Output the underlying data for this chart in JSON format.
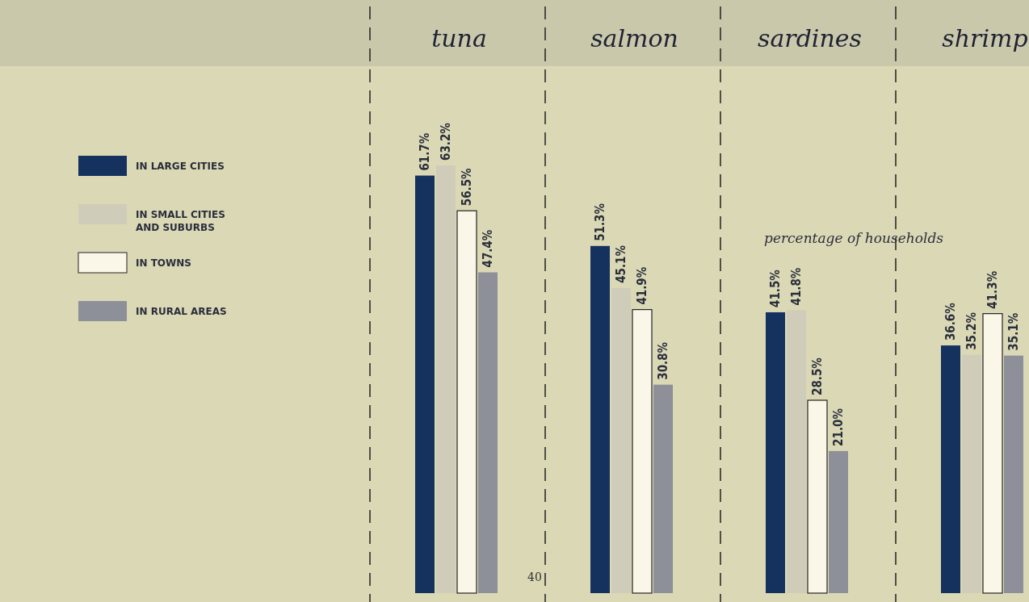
{
  "chart_data": {
    "type": "bar",
    "categories": [
      "tuna",
      "salmon",
      "sardines",
      "shrimp"
    ],
    "ylabel": "percentage of households",
    "legend": "left",
    "annotations": [
      "40"
    ],
    "series": [
      {
        "name": "IN LARGE CITIES",
        "color": "#15325f",
        "values": [
          61.7,
          51.3,
          41.5,
          36.6
        ],
        "value_labels": [
          "61.7%",
          "51.3%",
          "41.5%",
          "36.6%"
        ]
      },
      {
        "name": "IN SMALL CITIES AND SUBURBS",
        "color": "#cfcdb9",
        "values": [
          63.2,
          45.1,
          41.8,
          35.2
        ],
        "value_labels": [
          "63.2%",
          "45.1%",
          "41.8%",
          "35.2%"
        ]
      },
      {
        "name": "IN TOWNS",
        "color": "#fbf7e8",
        "values": [
          56.5,
          41.9,
          28.5,
          41.3
        ],
        "value_labels": [
          "56.5%",
          "41.9%",
          "28.5%",
          "41.3%"
        ]
      },
      {
        "name": "IN RURAL AREAS",
        "color": "#8d9099",
        "values": [
          47.4,
          30.8,
          21.0,
          35.1
        ],
        "value_labels": [
          "47.4%",
          "30.8%",
          "21.0%",
          "35.1%"
        ]
      }
    ]
  }
}
